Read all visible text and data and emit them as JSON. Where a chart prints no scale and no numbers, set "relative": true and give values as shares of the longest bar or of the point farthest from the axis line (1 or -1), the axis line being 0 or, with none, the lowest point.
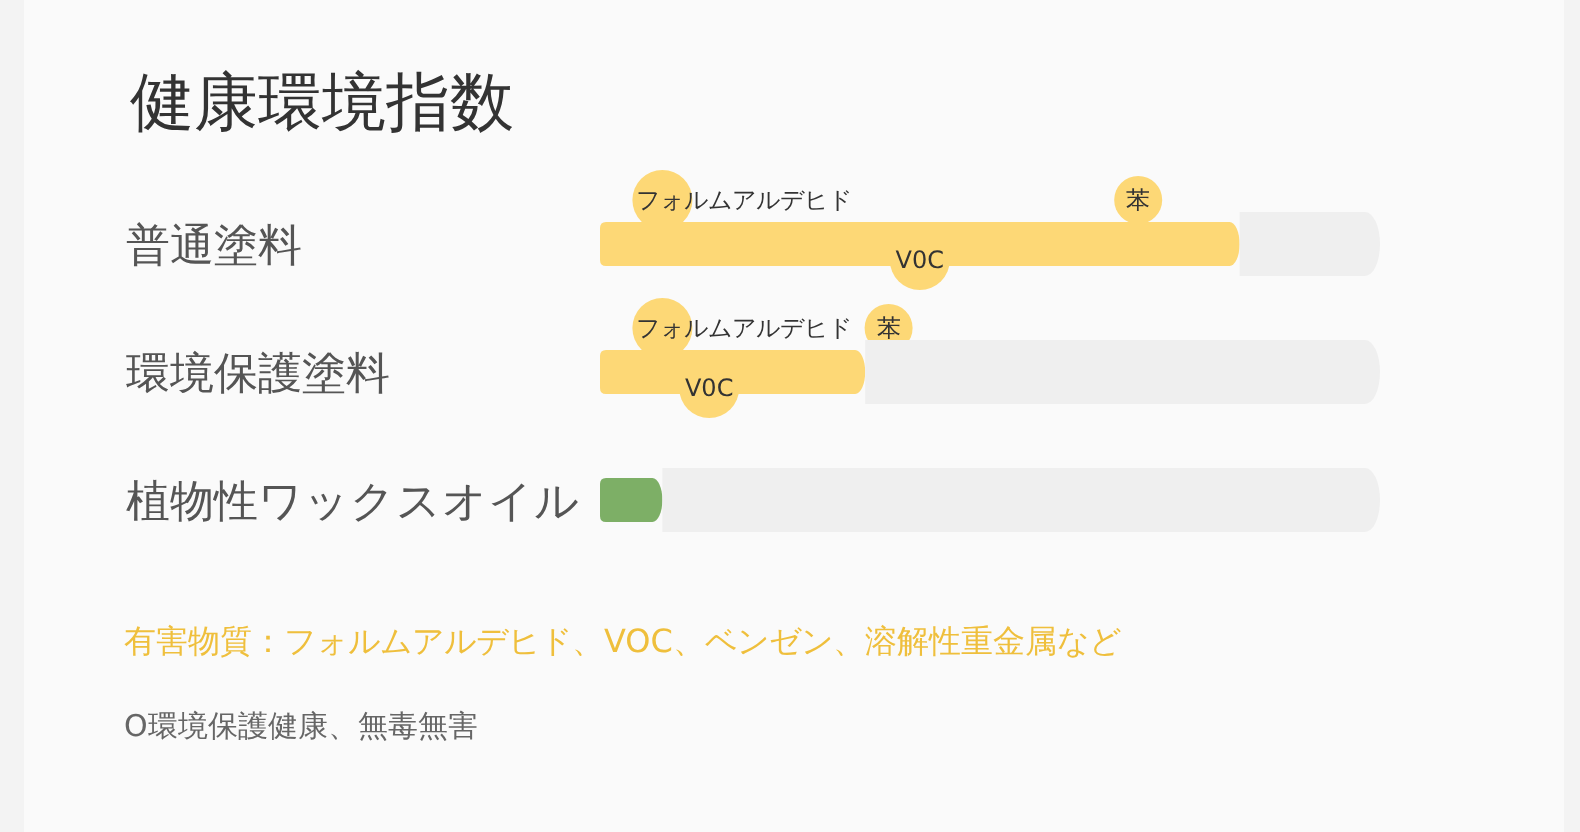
{
  "chart_data": {
    "type": "bar",
    "orientation": "horizontal",
    "stacked": true,
    "relative": true,
    "title": "健康環境指数",
    "categories": [
      "普通塗料",
      "環境保護塗料",
      "植物性ワックスオイル"
    ],
    "series": [
      {
        "colors": [
          "#fdd876",
          "#fdd876",
          "#7daf66"
        ],
        "values": [
          0.82,
          0.34,
          0.08
        ]
      },
      {
        "color": "#efefef",
        "values": [
          0.18,
          0.66,
          0.92
        ]
      }
    ],
    "annotations": [
      "フォルムアルデヒド",
      "V0C",
      "苯",
      "フォルムアルデヒド",
      "V0C",
      "苯",
      "有害物質：フォルムアルデヒド、VOC、ベンゼン、溶解性重金属など",
      "O環境保護健康、無毒無害"
    ]
  }
}
